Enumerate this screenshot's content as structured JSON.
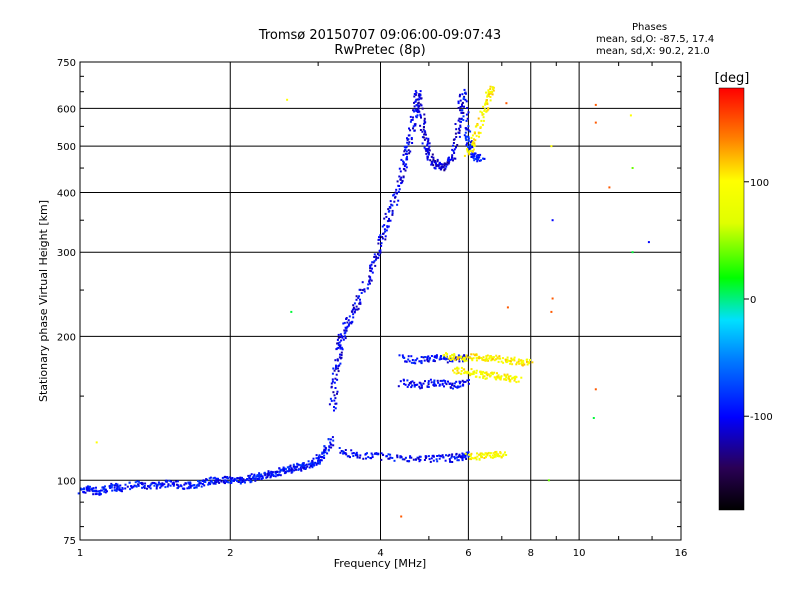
{
  "header": {
    "title_line1": "Tromsø 20150707 09:06:00-09:07:43",
    "title_line2": "RwPretec (8p)"
  },
  "phase_info": {
    "heading": "Phases",
    "line_o": "mean, sd,O: -87.5, 17.4",
    "line_x": "mean, sd,X:  90.2, 21.0"
  },
  "chart_data": {
    "type": "scatter",
    "xlabel": "Frequency [MHz]",
    "ylabel": "Stationary phase Virtual Height [km]",
    "x_scale": "log",
    "y_scale": "log",
    "xlim": [
      1,
      16
    ],
    "ylim": [
      75,
      750
    ],
    "x_ticks": [
      1,
      2,
      4,
      6,
      8,
      10,
      16
    ],
    "x_tick_labels": [
      "1",
      "2",
      "4",
      "6",
      "8",
      "10",
      "16"
    ],
    "y_ticks": [
      75,
      100,
      200,
      300,
      400,
      500,
      600,
      750
    ],
    "y_tick_labels": [
      "75",
      "100",
      "200",
      "300",
      "400",
      "500",
      "600",
      "750"
    ],
    "grid": true,
    "colorbar": {
      "label": "[deg]",
      "ticks": [
        100,
        0,
        -100
      ],
      "tick_labels": [
        "100",
        "0",
        "-100"
      ],
      "range": [
        -180,
        180
      ]
    },
    "traces": [
      {
        "name": "",
        "points": [
          [
            1.0,
            95
          ],
          [
            1.05,
            96
          ],
          [
            1.1,
            94
          ],
          [
            1.15,
            97
          ],
          [
            1.2,
            96
          ],
          [
            1.3,
            98
          ],
          [
            1.4,
            97
          ],
          [
            1.5,
            99
          ],
          [
            1.6,
            97
          ],
          [
            1.7,
            98
          ],
          [
            1.8,
            99
          ],
          [
            1.9,
            100
          ],
          [
            2.0,
            100
          ],
          [
            2.1,
            100
          ],
          [
            2.2,
            101
          ],
          [
            2.3,
            102
          ],
          [
            2.4,
            103
          ],
          [
            2.5,
            104
          ],
          [
            2.6,
            105
          ],
          [
            2.7,
            106
          ],
          [
            2.8,
            107
          ],
          [
            2.9,
            108
          ],
          [
            3.0,
            110
          ],
          [
            3.1,
            114
          ],
          [
            3.2,
            122
          ]
        ],
        "phase": -95
      },
      {
        "name": "",
        "points": [
          [
            3.2,
            140
          ],
          [
            3.25,
            165
          ],
          [
            3.3,
            185
          ],
          [
            3.35,
            200
          ],
          [
            3.45,
            215
          ],
          [
            3.6,
            235
          ],
          [
            3.8,
            265
          ],
          [
            3.95,
            300
          ],
          [
            4.1,
            340
          ],
          [
            4.25,
            380
          ],
          [
            4.4,
            430
          ],
          [
            4.5,
            480
          ],
          [
            4.6,
            530
          ],
          [
            4.7,
            600
          ],
          [
            4.75,
            650
          ]
        ],
        "phase": -105
      },
      {
        "name": "",
        "points": [
          [
            4.75,
            650
          ],
          [
            4.85,
            560
          ],
          [
            4.95,
            500
          ],
          [
            5.05,
            470
          ],
          [
            5.2,
            455
          ],
          [
            5.4,
            452
          ],
          [
            5.6,
            480
          ],
          [
            5.75,
            560
          ],
          [
            5.85,
            650
          ]
        ],
        "phase": -110
      },
      {
        "name": "",
        "points": [
          [
            5.85,
            650
          ],
          [
            5.95,
            540
          ],
          [
            6.05,
            495
          ],
          [
            6.2,
            475
          ],
          [
            6.4,
            470
          ]
        ],
        "phase": -95
      },
      {
        "name": "",
        "points": [
          [
            6.0,
            480
          ],
          [
            6.2,
            520
          ],
          [
            6.4,
            580
          ],
          [
            6.6,
            640
          ],
          [
            6.7,
            660
          ]
        ],
        "phase": 100
      },
      {
        "name": "",
        "points": [
          [
            3.3,
            115
          ],
          [
            3.6,
            113
          ],
          [
            4.0,
            112
          ],
          [
            4.5,
            111
          ],
          [
            5.0,
            111
          ],
          [
            5.5,
            111
          ],
          [
            5.8,
            112
          ],
          [
            6.0,
            113
          ]
        ],
        "phase": -100
      },
      {
        "name": "",
        "points": [
          [
            6.0,
            112
          ],
          [
            6.4,
            112
          ],
          [
            6.8,
            113
          ],
          [
            7.1,
            114
          ]
        ],
        "phase": 95
      },
      {
        "name": "",
        "points": [
          [
            4.4,
            160
          ],
          [
            4.8,
            158
          ],
          [
            5.2,
            160
          ],
          [
            5.6,
            158
          ],
          [
            6.0,
            160
          ]
        ],
        "phase": -100
      },
      {
        "name": "",
        "points": [
          [
            5.6,
            170
          ],
          [
            6.0,
            168
          ],
          [
            6.4,
            166
          ],
          [
            6.8,
            165
          ],
          [
            7.2,
            164
          ],
          [
            7.6,
            163
          ]
        ],
        "phase": 95
      },
      {
        "name": "",
        "points": [
          [
            4.4,
            180
          ],
          [
            4.8,
            178
          ],
          [
            5.2,
            180
          ],
          [
            5.6,
            179
          ],
          [
            6.0,
            181
          ]
        ],
        "phase": -100
      },
      {
        "name": "",
        "points": [
          [
            5.4,
            182
          ],
          [
            5.8,
            180
          ],
          [
            6.2,
            181
          ],
          [
            6.6,
            180
          ],
          [
            7.0,
            179
          ],
          [
            7.6,
            177
          ],
          [
            8.0,
            176
          ]
        ],
        "phase": 100
      }
    ],
    "scatter_points": [
      {
        "x": 2.6,
        "y": 625,
        "phase": 100
      },
      {
        "x": 2.65,
        "y": 225,
        "phase": 10
      },
      {
        "x": 7.15,
        "y": 615,
        "phase": 150
      },
      {
        "x": 8.8,
        "y": 500,
        "phase": 100
      },
      {
        "x": 8.85,
        "y": 350,
        "phase": -100
      },
      {
        "x": 8.85,
        "y": 240,
        "phase": 150
      },
      {
        "x": 8.8,
        "y": 225,
        "phase": 150
      },
      {
        "x": 7.2,
        "y": 230,
        "phase": 150
      },
      {
        "x": 10.8,
        "y": 560,
        "phase": 150
      },
      {
        "x": 10.8,
        "y": 610,
        "phase": 150
      },
      {
        "x": 12.7,
        "y": 580,
        "phase": 100
      },
      {
        "x": 12.8,
        "y": 450,
        "phase": 40
      },
      {
        "x": 11.5,
        "y": 410,
        "phase": 150
      },
      {
        "x": 12.8,
        "y": 300,
        "phase": 10
      },
      {
        "x": 13.8,
        "y": 315,
        "phase": -100
      },
      {
        "x": 10.8,
        "y": 155,
        "phase": 150
      },
      {
        "x": 10.7,
        "y": 135,
        "phase": 10
      },
      {
        "x": 8.7,
        "y": 100,
        "phase": 40
      },
      {
        "x": 4.4,
        "y": 84,
        "phase": 150
      },
      {
        "x": 1.08,
        "y": 120,
        "phase": 100
      }
    ]
  }
}
